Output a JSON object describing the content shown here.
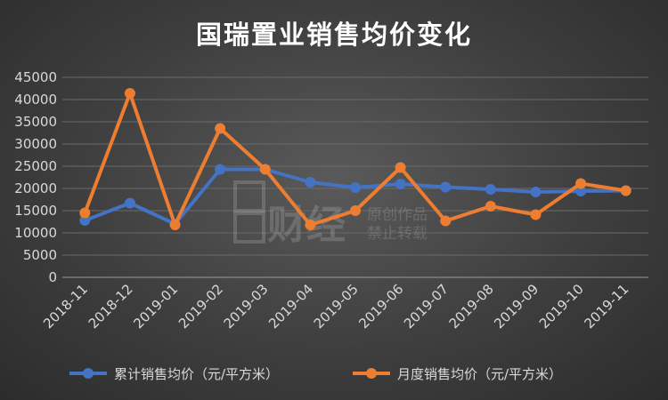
{
  "chart_data": {
    "type": "line",
    "title": "国瑞置业销售均价变化",
    "categories": [
      "2018-11",
      "2018-12",
      "2019-01",
      "2019-02",
      "2019-03",
      "2019-04",
      "2019-05",
      "2019-06",
      "2019-07",
      "2019-08",
      "2019-09",
      "2019-10",
      "2019-11"
    ],
    "series": [
      {
        "name": "累计销售均价（元/平方米）",
        "color": "#4472C4",
        "values": [
          12800,
          16700,
          12000,
          24300,
          24300,
          21400,
          20200,
          21000,
          20300,
          19800,
          19200,
          19400,
          19500
        ]
      },
      {
        "name": "月度销售均价（元/平方米）",
        "color": "#ED7D31",
        "values": [
          14500,
          41400,
          11800,
          33500,
          24300,
          11800,
          15000,
          24700,
          12700,
          16000,
          14100,
          21100,
          19500
        ]
      }
    ],
    "ylim": [
      0,
      45000
    ],
    "yticks": [
      0,
      5000,
      10000,
      15000,
      20000,
      25000,
      30000,
      35000,
      40000,
      45000
    ],
    "grid": true,
    "legend_position": "bottom"
  },
  "watermark": {
    "logo_text": "财经",
    "line1": "原创作品",
    "line2": "禁止转载"
  }
}
